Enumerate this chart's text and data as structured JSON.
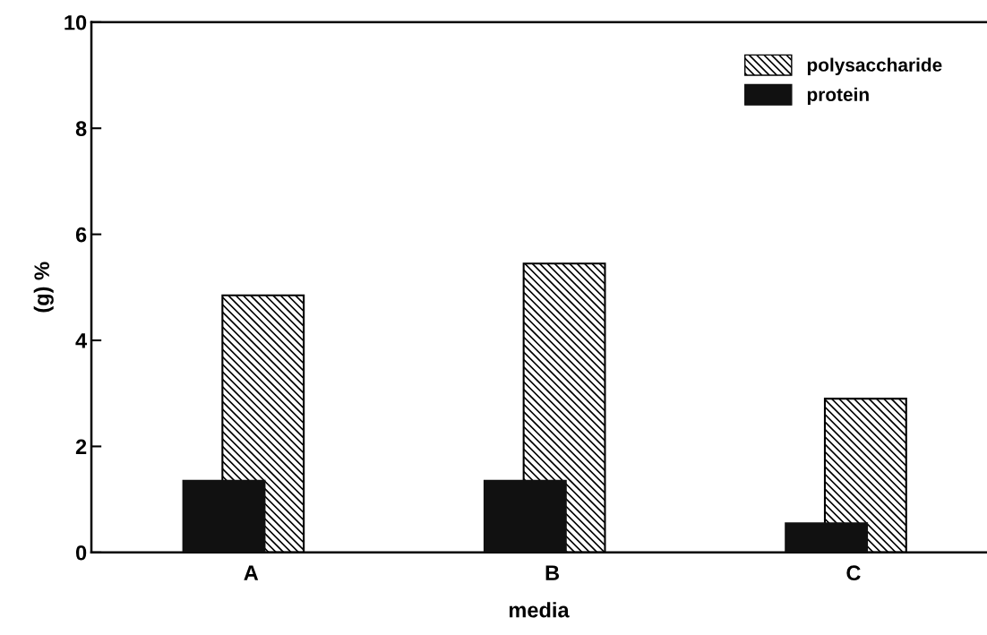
{
  "chart_data": {
    "type": "bar",
    "xlabel": "media",
    "ylabel": "(g) %",
    "categories": [
      "A",
      "B",
      "C"
    ],
    "series": [
      {
        "name": "protein",
        "color": "#111111",
        "values": [
          1.35,
          1.35,
          0.55
        ]
      },
      {
        "name": "polysaccharide",
        "color": "#000000",
        "values": [
          4.85,
          5.45,
          2.9
        ]
      }
    ],
    "ylim": [
      0,
      10
    ],
    "yticks": [
      0,
      2,
      4,
      6,
      8,
      10
    ],
    "grid": false,
    "legend": "top right"
  }
}
